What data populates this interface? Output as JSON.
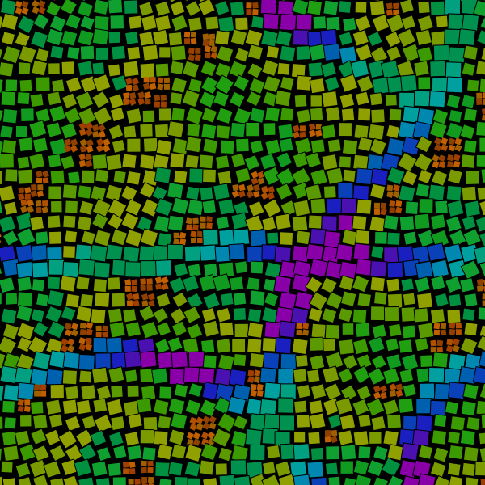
{
  "artwork": {
    "background": "#000000",
    "palette": {
      "band": [
        "#8a00a8",
        "#4a10b0",
        "#1a20c0",
        "#0a40b8",
        "#0060b0",
        "#0088b0",
        "#00a0a0",
        "#00a080",
        "#009050"
      ],
      "field": [
        "#109a20",
        "#20a010",
        "#3a9a00",
        "#5a9a00",
        "#7a9a00",
        "#90a000",
        "#009040",
        "#10a030"
      ],
      "filler": [
        "#a04000",
        "#b05000",
        "#c06000",
        "#904000",
        "#a06000"
      ]
    }
  }
}
